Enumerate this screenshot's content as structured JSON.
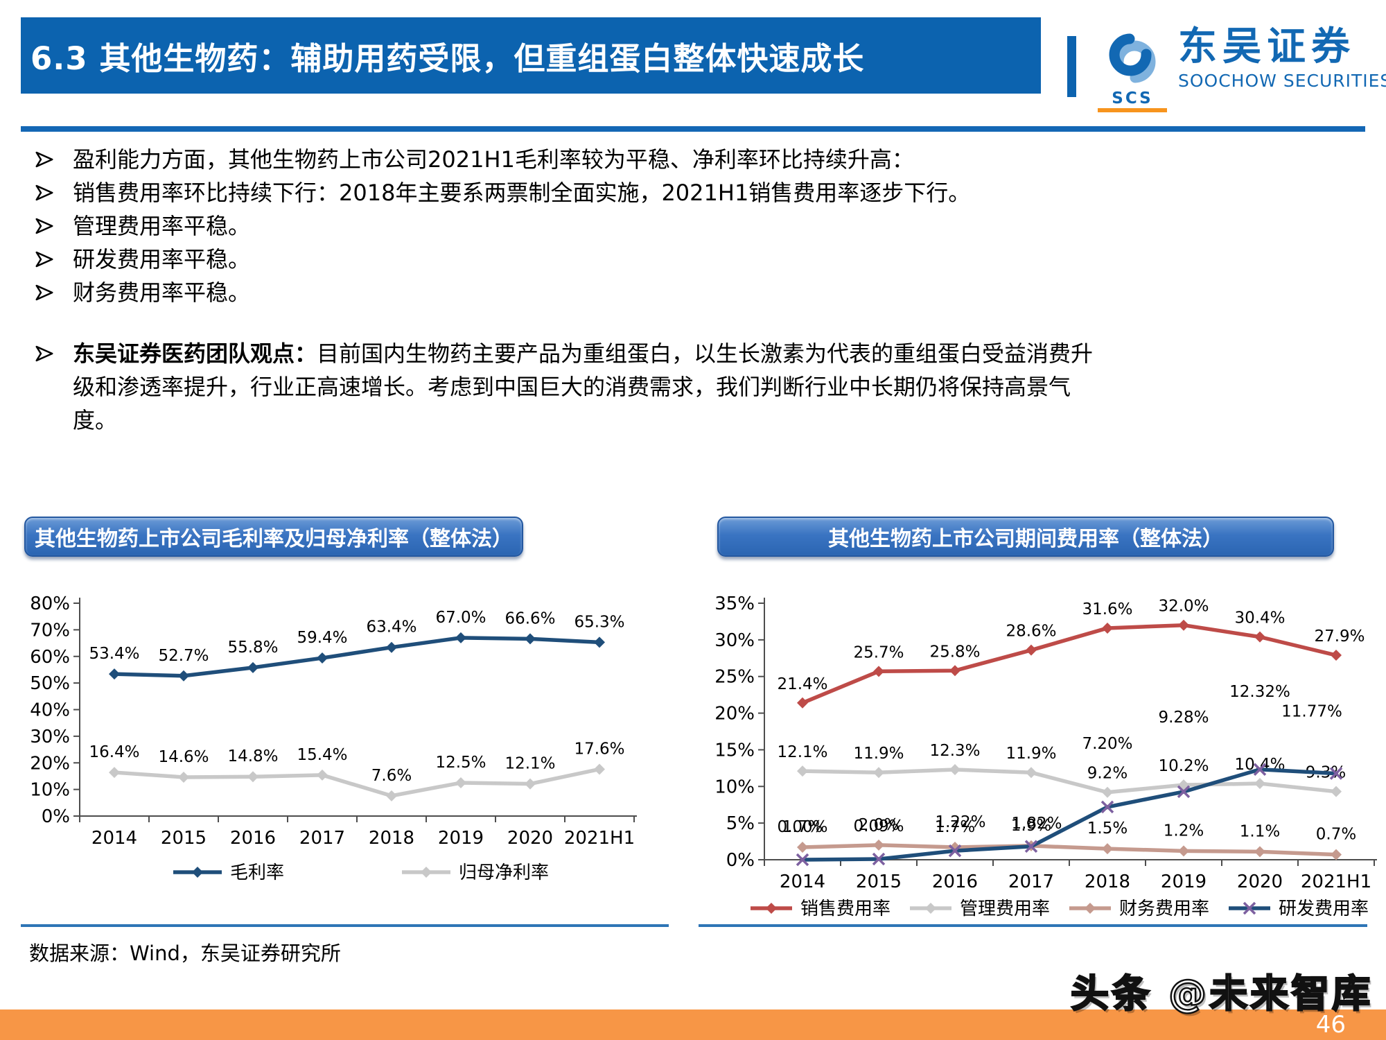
{
  "header": {
    "title": "6.3 其他生物药：辅助用药受限，但重组蛋白整体快速成长",
    "logo": {
      "scs": "SCS",
      "cn": "东吴证券",
      "en": "SOOCHOW SECURITIES"
    }
  },
  "bullets": [
    "盈利能力方面，其他生物药上市公司2021H1毛利率较为平稳、净利率环比持续升高：",
    "销售费用率环比持续下行：2018年主要系两票制全面实施，2021H1销售费用率逐步下行。",
    "管理费用率平稳。",
    "研发费用率平稳。",
    "财务费用率平稳。"
  ],
  "opinion": {
    "lead": "东吴证券医药团队观点：",
    "text": "目前国内生物药主要产品为重组蛋白，以生长激素为代表的重组蛋白受益消费升级和渗透率提升，行业正高速增长。考虑到中国巨大的消费需求，我们判断行业中长期仍将保持高景气度。"
  },
  "source_note": "数据来源：Wind，东吴证券研究所",
  "watermark": "头条 @未来智库",
  "page_number": "46",
  "colors": {
    "header_blue": "#0C63AF",
    "rule_blue": "#1467B5",
    "title_bar_blue": "#3A74C2",
    "accent_orange": "#F79646",
    "logo_blue": "#1268B3",
    "logo_orange": "#F7941D",
    "navy": "#1F4E7A",
    "gray": "#C8C8C8",
    "red": "#BE4B48",
    "rose": "#C59A8E",
    "purple": "#7D60A0"
  },
  "chart_data": [
    {
      "type": "line",
      "title": "其他生物药上市公司毛利率及归母净利率（整体法）",
      "categories": [
        "2014",
        "2015",
        "2016",
        "2017",
        "2018",
        "2019",
        "2020",
        "2021H1"
      ],
      "ylim": [
        0,
        80
      ],
      "yticks": [
        0,
        10,
        20,
        30,
        40,
        50,
        60,
        70,
        80
      ],
      "ytick_labels": [
        "0%",
        "10%",
        "20%",
        "30%",
        "40%",
        "50%",
        "60%",
        "70%",
        "80%"
      ],
      "grid": false,
      "legend_position": "bottom",
      "series": [
        {
          "name": "毛利率",
          "color": "#1F4E7A",
          "marker": "diamond",
          "values": [
            53.4,
            52.7,
            55.8,
            59.4,
            63.4,
            67.0,
            66.6,
            65.3
          ],
          "labels": [
            "53.4%",
            "52.7%",
            "55.8%",
            "59.4%",
            "63.4%",
            "67.0%",
            "66.6%",
            "65.3%"
          ]
        },
        {
          "name": "归母净利率",
          "color": "#C8C8C8",
          "marker": "diamond",
          "values": [
            16.4,
            14.6,
            14.8,
            15.4,
            7.6,
            12.5,
            12.1,
            17.6
          ],
          "labels": [
            "16.4%",
            "14.6%",
            "14.8%",
            "15.4%",
            "7.6%",
            "12.5%",
            "12.1%",
            "17.6%"
          ]
        }
      ]
    },
    {
      "type": "line",
      "title": "其他生物药上市公司期间费用率（整体法）",
      "categories": [
        "2014",
        "2015",
        "2016",
        "2017",
        "2018",
        "2019",
        "2020",
        "2021H1"
      ],
      "ylim": [
        0,
        35
      ],
      "yticks": [
        0,
        5,
        10,
        15,
        20,
        25,
        30,
        35
      ],
      "ytick_labels": [
        "0%",
        "5%",
        "10%",
        "15%",
        "20%",
        "25%",
        "30%",
        "35%"
      ],
      "grid": false,
      "legend_position": "bottom",
      "series": [
        {
          "name": "销售费用率",
          "color": "#BE4B48",
          "marker": "diamond",
          "values": [
            21.4,
            25.7,
            25.8,
            28.6,
            31.6,
            32.0,
            30.4,
            27.9
          ],
          "labels": [
            "21.4%",
            "25.7%",
            "25.8%",
            "28.6%",
            "31.6%",
            "32.0%",
            "30.4%",
            "27.9%"
          ]
        },
        {
          "name": "管理费用率",
          "color": "#C8C8C8",
          "marker": "diamond",
          "values": [
            12.1,
            11.9,
            12.3,
            11.9,
            9.2,
            10.2,
            10.4,
            9.3
          ],
          "labels": [
            "12.1%",
            "11.9%",
            "12.3%",
            "11.9%",
            "9.2%",
            "10.2%",
            "10.4%",
            "9.3%"
          ]
        },
        {
          "name": "财务费用率",
          "color": "#C59A8E",
          "marker": "diamond",
          "values": [
            1.7,
            2.0,
            1.7,
            1.9,
            1.5,
            1.2,
            1.1,
            0.7
          ],
          "labels": [
            "1.7%",
            "2.0%",
            "1.7%",
            "1.9%",
            "1.5%",
            "1.2%",
            "1.1%",
            "0.7%"
          ]
        },
        {
          "name": "研发费用率",
          "color": "#1F4E7A",
          "marker": "x",
          "marker_color": "#7D60A0",
          "values": [
            0.0,
            0.09,
            1.22,
            1.82,
            7.2,
            9.28,
            12.32,
            11.77
          ],
          "labels": [
            "0.00%",
            "0.09%",
            "1.22%",
            "1.82%",
            "7.20%",
            "9.28%",
            "12.32%",
            "11.77%"
          ]
        }
      ]
    }
  ]
}
